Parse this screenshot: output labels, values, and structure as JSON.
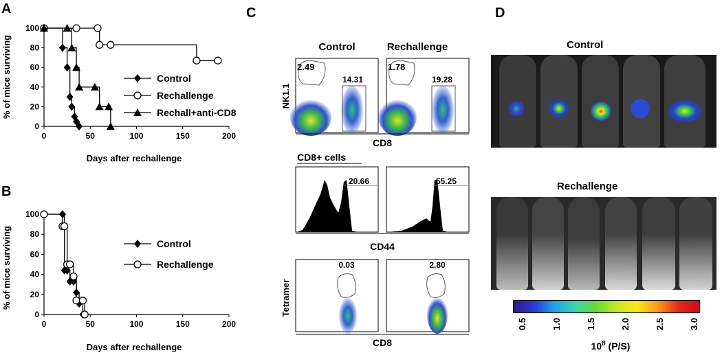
{
  "panels": {
    "A": "A",
    "B": "B",
    "C": "C",
    "D": "D"
  },
  "panel_a": {
    "ylabel": "% of mice surviving",
    "xlabel": "Days after rechallenge",
    "xticks": [
      "0",
      "50",
      "100",
      "150",
      "200"
    ],
    "yticks": [
      "0",
      "20",
      "40",
      "60",
      "80",
      "100"
    ],
    "legend": [
      "Control",
      "Rechallenge",
      "Rechall+anti-CD8"
    ]
  },
  "panel_b": {
    "ylabel": "% of mice surviving",
    "xlabel": "Days after rechallenge",
    "xticks": [
      "0",
      "50",
      "100",
      "150",
      "200"
    ],
    "yticks": [
      "0",
      "20",
      "40",
      "60",
      "80",
      "100"
    ],
    "legend": [
      "Control",
      "Rechallenge"
    ]
  },
  "chart_data": [
    {
      "type": "line",
      "title": "A",
      "xlabel": "Days after rechallenge",
      "ylabel": "% of mice surviving",
      "xlim": [
        0,
        200
      ],
      "ylim": [
        0,
        100
      ],
      "series": [
        {
          "name": "Control",
          "marker": "diamond",
          "x": [
            0,
            20,
            25,
            28,
            30,
            33,
            35,
            38
          ],
          "y": [
            100,
            80,
            60,
            30,
            20,
            10,
            5,
            0
          ]
        },
        {
          "name": "Rechallenge",
          "marker": "circle",
          "x": [
            0,
            35,
            58,
            60,
            72,
            165,
            188
          ],
          "y": [
            100,
            100,
            100,
            83,
            83,
            67,
            67
          ]
        },
        {
          "name": "Rechall+anti-CD8",
          "marker": "triangle",
          "x": [
            0,
            25,
            30,
            35,
            38,
            55,
            60,
            70,
            72
          ],
          "y": [
            100,
            100,
            80,
            60,
            40,
            40,
            20,
            20,
            0
          ]
        }
      ]
    },
    {
      "type": "line",
      "title": "B",
      "xlabel": "Days after rechallenge",
      "ylabel": "% of mice surviving",
      "xlim": [
        0,
        200
      ],
      "ylim": [
        0,
        100
      ],
      "series": [
        {
          "name": "Control",
          "marker": "diamond",
          "x": [
            0,
            20,
            22,
            25,
            28,
            32,
            35,
            38,
            42
          ],
          "y": [
            100,
            100,
            44,
            44,
            33,
            33,
            22,
            11,
            0
          ]
        },
        {
          "name": "Rechallenge",
          "marker": "circle",
          "x": [
            0,
            20,
            22,
            25,
            28,
            32,
            35,
            42,
            44
          ],
          "y": [
            100,
            88,
            88,
            50,
            50,
            38,
            14,
            14,
            0
          ]
        }
      ]
    }
  ],
  "panel_c": {
    "col_control": "Control",
    "col_rechallenge": "Rechallenge",
    "row1_ylabel": "NK1.1",
    "row1_xlabel": "CD8",
    "row1_control_nk": "2.49",
    "row1_control_cd8": "14.31",
    "row1_rechall_nk": "1.78",
    "row1_rechall_cd8": "19.28",
    "row2_title": "CD8+ cells",
    "row2_xlabel": "CD44",
    "row2_control": "20.66",
    "row2_rechall": "55.25",
    "row3_ylabel": "Tetramer",
    "row3_xlabel": "CD8",
    "row3_control": "0.03",
    "row3_rechall": "2.80"
  },
  "panel_d": {
    "control_label": "Control",
    "rechallenge_label": "Rechallenge",
    "colorbar_ticks": [
      "0.5",
      "1.0",
      "1.5",
      "2.0",
      "2.5",
      "3.0"
    ],
    "colorbar_label": "10",
    "colorbar_exp": "8",
    "colorbar_unit": " (P/S)"
  }
}
